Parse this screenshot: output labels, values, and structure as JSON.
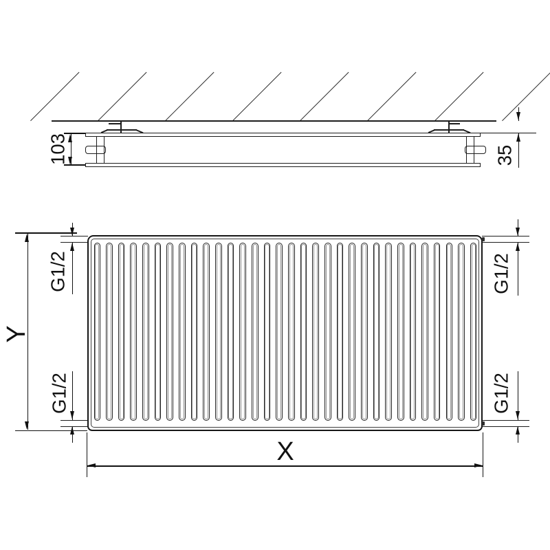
{
  "dimensions": {
    "depth": "103",
    "wall_distance": "35",
    "width": "X",
    "height": "Y",
    "thread": "G1/2"
  },
  "side_view": {
    "hatch_line_count": 8
  },
  "front_view": {
    "corrugation_count": 32
  }
}
